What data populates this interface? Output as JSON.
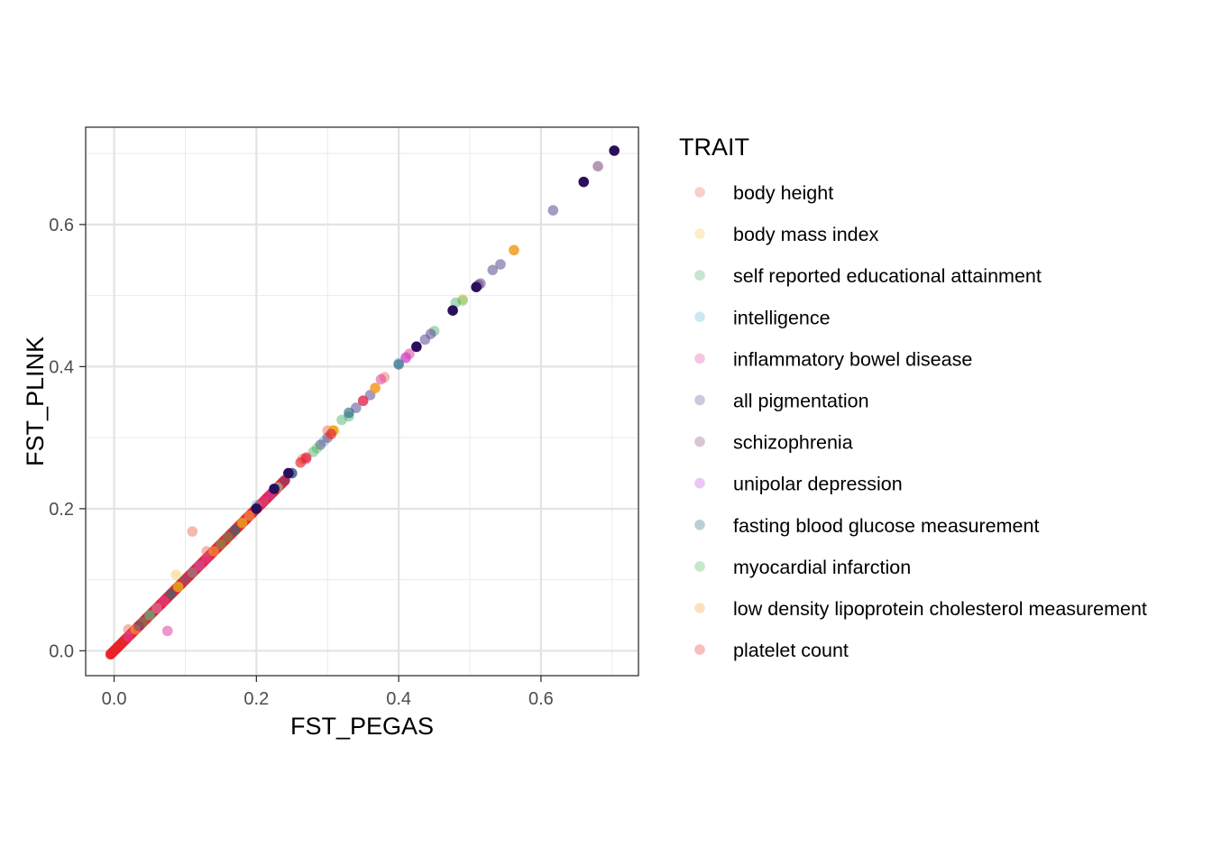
{
  "chart_data": {
    "type": "scatter",
    "xlabel": "FST_PEGAS",
    "ylabel": "FST_PLINK",
    "xlim": [
      -0.04,
      0.737
    ],
    "ylim": [
      -0.035,
      0.737
    ],
    "x_ticks": [
      {
        "value": 0.0,
        "label": "0.0"
      },
      {
        "value": 0.2,
        "label": "0.2"
      },
      {
        "value": 0.4,
        "label": "0.4"
      },
      {
        "value": 0.6,
        "label": "0.6"
      }
    ],
    "y_ticks": [
      {
        "value": 0.0,
        "label": "0.0"
      },
      {
        "value": 0.2,
        "label": "0.2"
      },
      {
        "value": 0.4,
        "label": "0.4"
      },
      {
        "value": 0.6,
        "label": "0.6"
      }
    ],
    "grid": true,
    "legend": {
      "title": "TRAIT",
      "position": "right"
    },
    "series": [
      {
        "name": "body height",
        "color": "#E8604C",
        "opacity": 0.45,
        "points": [
          [
            0.11,
            0.168
          ],
          [
            0.13,
            0.14
          ],
          [
            0.02,
            0.03
          ],
          [
            0.05,
            0.05
          ],
          [
            0.08,
            0.08
          ],
          [
            0.1,
            0.1
          ],
          [
            0.12,
            0.12
          ],
          [
            0.15,
            0.15
          ],
          [
            0.17,
            0.17
          ],
          [
            0.265,
            0.27
          ],
          [
            0.3,
            0.31
          ],
          [
            0.38,
            0.385
          ]
        ]
      },
      {
        "name": "body mass index",
        "color": "#F9C74F",
        "opacity": 0.45,
        "points": [
          [
            0.087,
            0.107
          ],
          [
            0.03,
            0.03
          ],
          [
            0.06,
            0.06
          ],
          [
            0.14,
            0.14
          ],
          [
            0.19,
            0.19
          ],
          [
            0.23,
            0.23
          ],
          [
            0.31,
            0.31
          ],
          [
            0.49,
            0.495
          ]
        ]
      },
      {
        "name": "self reported educational attainment",
        "color": "#43AA6B",
        "opacity": 0.45,
        "points": [
          [
            0.04,
            0.04
          ],
          [
            0.09,
            0.09
          ],
          [
            0.16,
            0.16
          ],
          [
            0.28,
            0.28
          ],
          [
            0.32,
            0.325
          ],
          [
            0.48,
            0.49
          ],
          [
            0.45,
            0.45
          ],
          [
            0.33,
            0.33
          ]
        ]
      },
      {
        "name": "intelligence",
        "color": "#56B4D3",
        "opacity": 0.45,
        "points": [
          [
            0.05,
            0.05
          ],
          [
            0.11,
            0.11
          ],
          [
            0.2,
            0.205
          ],
          [
            0.23,
            0.23
          ],
          [
            0.4,
            0.405
          ],
          [
            0.295,
            0.295
          ]
        ]
      },
      {
        "name": "inflammatory bowel disease",
        "color": "#E040A0",
        "opacity": 0.55,
        "points": [
          [
            0.075,
            0.028
          ],
          [
            0.02,
            0.02
          ],
          [
            0.07,
            0.07
          ],
          [
            0.13,
            0.13
          ],
          [
            0.21,
            0.21
          ],
          [
            0.41,
            0.413
          ],
          [
            0.415,
            0.418
          ],
          [
            0.375,
            0.382
          ],
          [
            0.27,
            0.27
          ]
        ]
      },
      {
        "name": "all pigmentation",
        "color": "#5B4A91",
        "opacity": 0.55,
        "points": [
          [
            0.617,
            0.62
          ],
          [
            0.543,
            0.544
          ],
          [
            0.532,
            0.536
          ],
          [
            0.515,
            0.517
          ],
          [
            0.445,
            0.446
          ],
          [
            0.437,
            0.438
          ],
          [
            0.34,
            0.342
          ],
          [
            0.29,
            0.29
          ],
          [
            0.25,
            0.25
          ],
          [
            0.36,
            0.36
          ]
        ]
      },
      {
        "name": "schizophrenia",
        "color": "#7A4475",
        "opacity": 0.55,
        "points": [
          [
            0.68,
            0.682
          ],
          [
            0.512,
            0.515
          ],
          [
            0.425,
            0.428
          ],
          [
            0.3,
            0.3
          ],
          [
            0.24,
            0.24
          ],
          [
            0.18,
            0.18
          ],
          [
            0.1,
            0.1
          ],
          [
            0.035,
            0.035
          ]
        ]
      },
      {
        "name": "unipolar depression",
        "color": "#C040E0",
        "opacity": 0.45,
        "points": [
          [
            0.41,
            0.412
          ],
          [
            0.35,
            0.352
          ],
          [
            0.22,
            0.22
          ],
          [
            0.12,
            0.12
          ],
          [
            0.06,
            0.06
          ]
        ]
      },
      {
        "name": "fasting blood glucose measurement",
        "color": "#1F5F7A",
        "opacity": 0.6,
        "points": [
          [
            0.4,
            0.403
          ],
          [
            0.33,
            0.335
          ],
          [
            0.25,
            0.25
          ],
          [
            0.17,
            0.17
          ],
          [
            0.08,
            0.08
          ]
        ]
      },
      {
        "name": "myocardial infarction",
        "color": "#3CB44B",
        "opacity": 0.4,
        "points": [
          [
            0.49,
            0.493
          ],
          [
            0.285,
            0.285
          ],
          [
            0.15,
            0.15
          ],
          [
            0.05,
            0.05
          ],
          [
            0.2,
            0.2
          ]
        ]
      },
      {
        "name": "low density lipoprotein cholesterol measurement",
        "color": "#F29B1D",
        "opacity": 0.85,
        "points": [
          [
            0.562,
            0.564
          ],
          [
            0.367,
            0.37
          ],
          [
            0.308,
            0.31
          ],
          [
            0.18,
            0.18
          ],
          [
            0.09,
            0.09
          ]
        ]
      },
      {
        "name": "platelet count",
        "color": "#E8242A",
        "opacity": 0.65,
        "points": [
          [
            0.35,
            0.352
          ],
          [
            0.305,
            0.305
          ],
          [
            0.27,
            0.272
          ],
          [
            0.262,
            0.265
          ]
        ]
      }
    ],
    "overlay_points": [
      {
        "color": "#2B0E5C",
        "opacity": 1.0,
        "points": [
          [
            0.703,
            0.704
          ],
          [
            0.66,
            0.66
          ],
          [
            0.476,
            0.479
          ],
          [
            0.509,
            0.512
          ],
          [
            0.425,
            0.428
          ],
          [
            0.245,
            0.25
          ],
          [
            0.225,
            0.228
          ],
          [
            0.2,
            0.2
          ]
        ]
      }
    ],
    "trend_band": {
      "color": "#E8242A",
      "opacity": 0.85,
      "x_start": -0.005,
      "x_end": 0.24,
      "steps": 240
    }
  }
}
